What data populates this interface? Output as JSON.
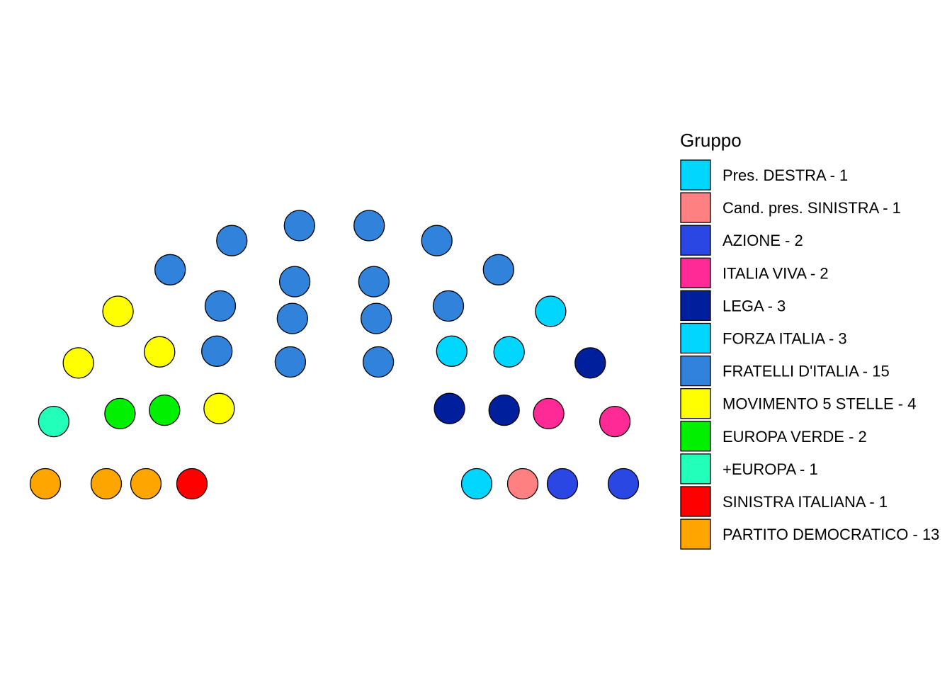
{
  "chart_data": {
    "type": "parliament",
    "title": "",
    "legend": {
      "title": "Gruppo",
      "placement": "right"
    },
    "parties": [
      {
        "name": "Pres. DESTRA - 1",
        "seats": 1,
        "color": "#00D6FF"
      },
      {
        "name": "Cand. pres. SINISTRA - 1",
        "seats": 1,
        "color": "#FF8080"
      },
      {
        "name": "AZIONE - 2",
        "seats": 2,
        "color": "#2B47E3"
      },
      {
        "name": "ITALIA VIVA - 2",
        "seats": 2,
        "color": "#FF2A95"
      },
      {
        "name": "LEGA - 3",
        "seats": 3,
        "color": "#001F9C"
      },
      {
        "name": "FORZA ITALIA - 3",
        "seats": 3,
        "color": "#00D6FF"
      },
      {
        "name": "FRATELLI D'ITALIA - 15",
        "seats": 15,
        "color": "#3182DB"
      },
      {
        "name": "MOVIMENTO 5 STELLE - 4",
        "seats": 4,
        "color": "#FFFF00"
      },
      {
        "name": "EUROPA VERDE - 2",
        "seats": 2,
        "color": "#00F000"
      },
      {
        "name": "+EUROPA - 1",
        "seats": 1,
        "color": "#22FFBB"
      },
      {
        "name": "SINISTRA ITALIANA - 1",
        "seats": 1,
        "color": "#FF0000"
      },
      {
        "name": "PARTITO DEMOCRATICO - 13",
        "seats": 13,
        "color": "#FFA500"
      }
    ]
  }
}
